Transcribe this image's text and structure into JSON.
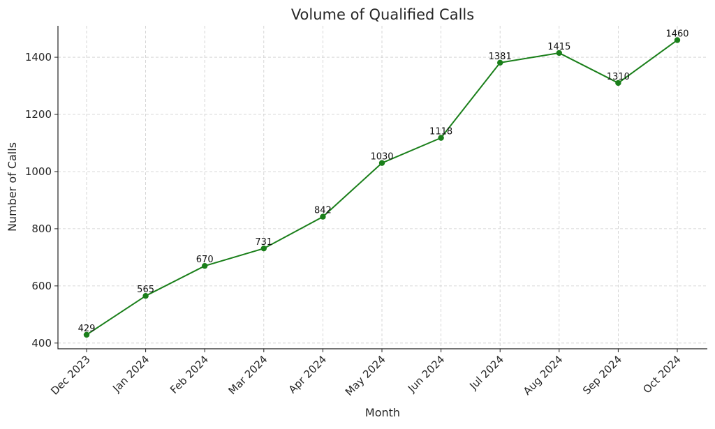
{
  "chart_data": {
    "type": "line",
    "title": "Volume of Qualified Calls",
    "xlabel": "Month",
    "ylabel": "Number of Calls",
    "categories": [
      "Dec 2023",
      "Jan 2024",
      "Feb 2024",
      "Mar 2024",
      "Apr 2024",
      "May 2024",
      "Jun 2024",
      "Jul 2024",
      "Aug 2024",
      "Sep 2024",
      "Oct 2024"
    ],
    "series": [
      {
        "values": [
          429,
          565,
          670,
          731,
          842,
          1030,
          1118,
          1381,
          1415,
          1310,
          1460
        ],
        "color": "#1a7f1a",
        "marker": "circle"
      }
    ],
    "ylim": [
      380,
      1510
    ],
    "yticks": [
      400,
      600,
      800,
      1000,
      1200,
      1400
    ],
    "grid": true,
    "data_labels": true
  }
}
